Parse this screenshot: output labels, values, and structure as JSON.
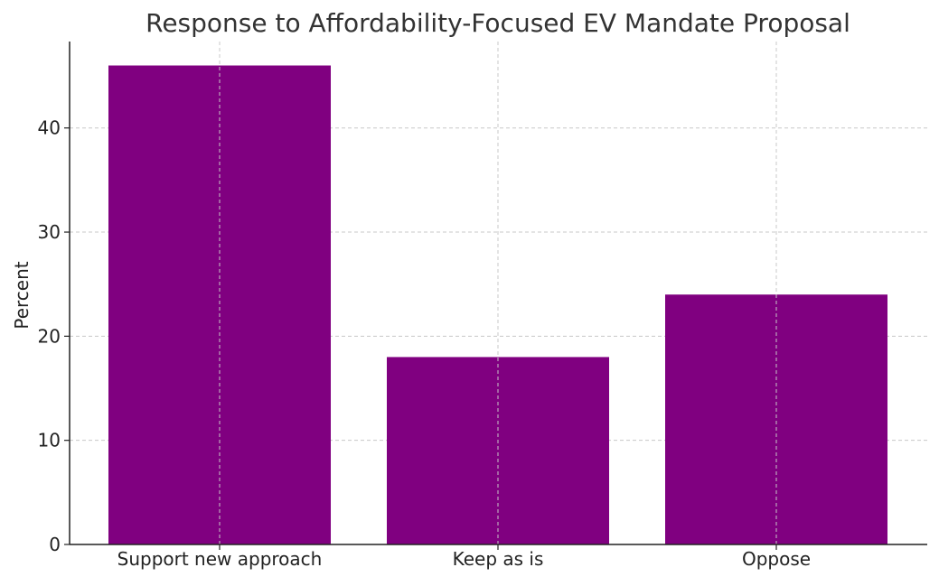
{
  "chart_data": {
    "type": "bar",
    "title": "Response to Affordability-Focused EV Mandate Proposal",
    "xlabel": "",
    "ylabel": "Percent",
    "categories": [
      "Support new approach",
      "Keep as is",
      "Oppose"
    ],
    "values": [
      46,
      18,
      24
    ],
    "ylim": [
      0,
      48.3
    ],
    "yticks": [
      0,
      10,
      20,
      30,
      40
    ],
    "grid": true,
    "bar_color": "#800080"
  }
}
